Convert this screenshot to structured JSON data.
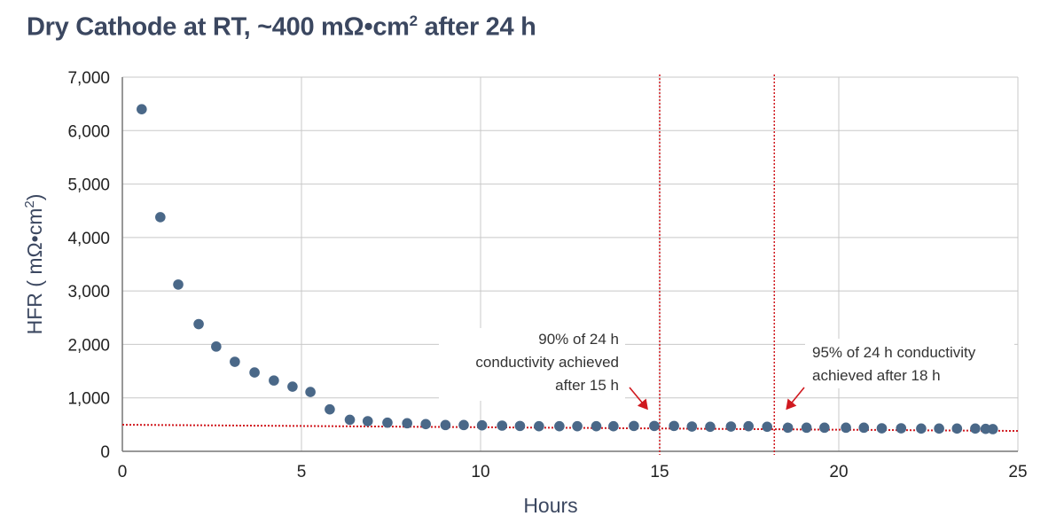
{
  "chart_data": {
    "type": "scatter",
    "title_main": "Dry Cathode at RT, ~400 mΩ•cm",
    "title_sup": "2",
    "title_tail": " after 24 h",
    "xlabel": "Hours",
    "ylabel_main": "HFR ( mΩ•cm",
    "ylabel_sup": "2",
    "ylabel_tail": ")",
    "xlim": [
      0,
      25
    ],
    "ylim": [
      0,
      7000
    ],
    "xticks": [
      "0",
      "5",
      "10",
      "15",
      "20",
      "25"
    ],
    "xtick_values": [
      0,
      5,
      10,
      15,
      20,
      25
    ],
    "yticks": [
      "0",
      "1,000",
      "2,000",
      "3,000",
      "4,000",
      "5,000",
      "6,000",
      "7,000"
    ],
    "ytick_values": [
      0,
      1000,
      2000,
      3000,
      4000,
      5000,
      6000,
      7000
    ],
    "grid": true,
    "marker_color": "#4a6888",
    "reference_color": "#d0191f",
    "x": [
      0.54,
      1.06,
      1.56,
      2.13,
      2.62,
      3.14,
      3.69,
      4.23,
      4.75,
      5.25,
      5.79,
      6.35,
      6.85,
      7.4,
      7.95,
      8.47,
      9.02,
      9.53,
      10.04,
      10.6,
      11.1,
      11.63,
      12.2,
      12.7,
      13.23,
      13.71,
      14.28,
      14.85,
      15.4,
      15.9,
      16.41,
      16.99,
      17.48,
      18.0,
      18.58,
      19.1,
      19.6,
      20.2,
      20.7,
      21.2,
      21.74,
      22.3,
      22.8,
      23.3,
      23.81,
      24.1,
      24.3
    ],
    "y": [
      6400,
      4380,
      3120,
      2380,
      1960,
      1675,
      1475,
      1325,
      1210,
      1110,
      785,
      590,
      564,
      536,
      525,
      509,
      492,
      492,
      486,
      481,
      475,
      470,
      470,
      470,
      470,
      470,
      475,
      475,
      475,
      464,
      459,
      464,
      470,
      459,
      442,
      442,
      442,
      442,
      442,
      431,
      431,
      426,
      426,
      426,
      426,
      420,
      415
    ],
    "trendline": {
      "x": [
        0,
        25
      ],
      "y": [
        497,
        381
      ]
    },
    "vertical_lines": [
      15.0,
      18.2
    ],
    "annotations": [
      {
        "lines": [
          "90% of 24 h",
          "conductivity achieved",
          "after 15 h"
        ],
        "arrow_to_x": 14.8
      },
      {
        "lines": [
          "95% of 24 h conductivity",
          "achieved after 18 h"
        ],
        "arrow_to_x": 18.4
      }
    ]
  }
}
